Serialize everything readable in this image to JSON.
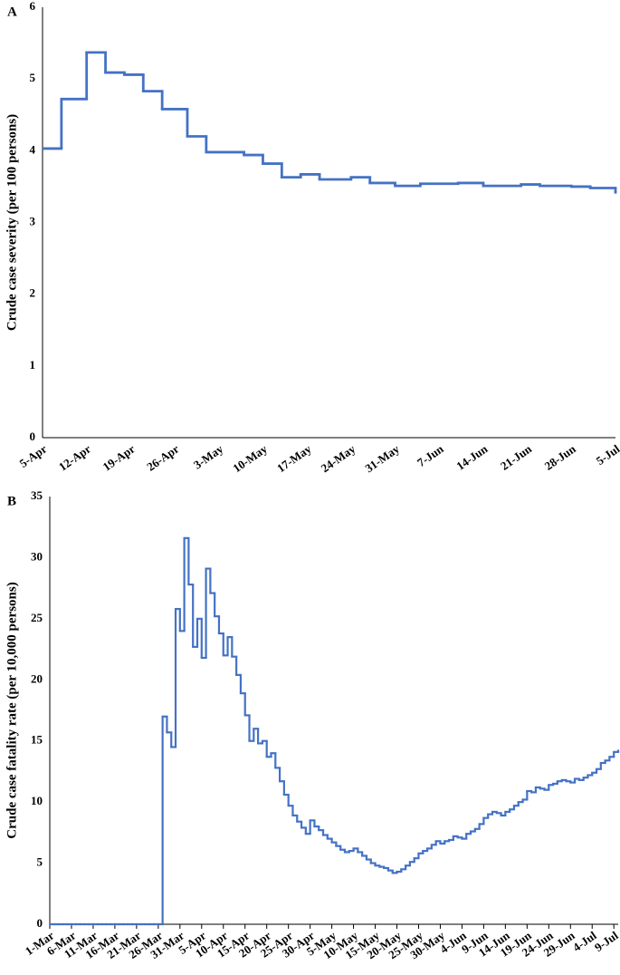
{
  "chart_data": [
    {
      "type": "step",
      "label": "A",
      "ylabel": "Crude case severity (per 100 persons)",
      "series": [
        {
          "color": "#4472c4",
          "x": [
            0,
            3,
            7,
            10,
            13,
            16,
            19,
            23,
            26,
            32,
            35,
            38,
            41,
            44,
            49,
            52,
            56,
            60,
            66,
            70,
            76,
            79,
            84,
            87,
            91
          ],
          "values": [
            4.03,
            4.72,
            5.37,
            5.09,
            5.06,
            4.83,
            4.58,
            4.2,
            3.98,
            3.94,
            3.82,
            3.63,
            3.67,
            3.6,
            3.63,
            3.55,
            3.51,
            3.54,
            3.55,
            3.51,
            3.53,
            3.51,
            3.5,
            3.48,
            3.42
          ]
        }
      ],
      "xlim": [
        0,
        91
      ],
      "xticks": [
        {
          "value": 0,
          "label": "5-Apr"
        },
        {
          "value": 7,
          "label": "12-Apr"
        },
        {
          "value": 14,
          "label": "19-Apr"
        },
        {
          "value": 21,
          "label": "26-Apr"
        },
        {
          "value": 28,
          "label": "3-May"
        },
        {
          "value": 35,
          "label": "10-May"
        },
        {
          "value": 42,
          "label": "17-May"
        },
        {
          "value": 49,
          "label": "24-May"
        },
        {
          "value": 56,
          "label": "31-May"
        },
        {
          "value": 63,
          "label": "7-Jun"
        },
        {
          "value": 70,
          "label": "14-Jun"
        },
        {
          "value": 77,
          "label": "21-Jun"
        },
        {
          "value": 84,
          "label": "28-Jun"
        },
        {
          "value": 91,
          "label": "5-Jul"
        }
      ],
      "ylim": [
        0,
        6
      ],
      "yticks": [
        0,
        1,
        2,
        3,
        4,
        5,
        6
      ],
      "grid": false
    },
    {
      "type": "step",
      "label": "B",
      "ylabel": "Crude case fatality rate (per 10,000 persons)",
      "series": [
        {
          "color": "#4472c4",
          "x": [
            0,
            1,
            2,
            3,
            4,
            5,
            6,
            7,
            8,
            9,
            10,
            11,
            12,
            13,
            14,
            15,
            16,
            17,
            18,
            19,
            20,
            21,
            22,
            23,
            24,
            25,
            26,
            27,
            28,
            29,
            30,
            31,
            32,
            33,
            34,
            35,
            36,
            37,
            38,
            39,
            40,
            41,
            42,
            43,
            44,
            45,
            46,
            47,
            48,
            49,
            50,
            51,
            52,
            53,
            54,
            55,
            56,
            57,
            58,
            59,
            60,
            61,
            62,
            63,
            64,
            65,
            66,
            67,
            68,
            69,
            70,
            71,
            72,
            73,
            74,
            75,
            76,
            77,
            78,
            79,
            80,
            81,
            82,
            83,
            84,
            85,
            86,
            87,
            88,
            89,
            90,
            91,
            92,
            93,
            94,
            95,
            96,
            97,
            98,
            99,
            100,
            101,
            102,
            103,
            104,
            105,
            106,
            107,
            108,
            109,
            110,
            111,
            112,
            113,
            114,
            115,
            116,
            117,
            118,
            119,
            120,
            121,
            122,
            123,
            124,
            125,
            126,
            127,
            128,
            129,
            130,
            131
          ],
          "values": [
            0,
            0,
            0,
            0,
            0,
            0,
            0,
            0,
            0,
            0,
            0,
            0,
            0,
            0,
            0,
            0,
            0,
            0,
            0,
            0,
            0,
            0,
            0,
            0,
            0,
            0,
            17.0,
            15.7,
            14.5,
            25.8,
            24.0,
            31.6,
            27.8,
            22.7,
            25.0,
            21.8,
            29.1,
            27.1,
            25.2,
            23.8,
            22.0,
            23.5,
            21.9,
            20.4,
            18.9,
            17.1,
            15.0,
            16.0,
            14.8,
            15.0,
            13.7,
            14.0,
            12.8,
            11.7,
            10.6,
            9.7,
            8.9,
            8.4,
            7.9,
            7.4,
            8.5,
            8.0,
            7.7,
            7.3,
            7.0,
            6.7,
            6.4,
            6.1,
            5.9,
            6.0,
            6.2,
            5.9,
            5.6,
            5.3,
            5.0,
            4.8,
            4.7,
            4.6,
            4.4,
            4.2,
            4.3,
            4.5,
            4.8,
            5.1,
            5.4,
            5.8,
            6.0,
            6.2,
            6.5,
            6.8,
            6.6,
            6.8,
            6.9,
            7.2,
            7.1,
            7.0,
            7.4,
            7.6,
            7.8,
            8.2,
            8.7,
            9.0,
            9.2,
            9.1,
            8.9,
            9.2,
            9.4,
            9.7,
            10.0,
            10.2,
            10.9,
            10.8,
            11.2,
            11.1,
            11.0,
            11.4,
            11.5,
            11.7,
            11.8,
            11.7,
            11.6,
            11.9,
            11.8,
            12.0,
            12.2,
            12.4,
            12.7,
            13.2,
            13.4,
            13.7,
            14.1,
            14.2
          ]
        }
      ],
      "xlim": [
        0,
        131
      ],
      "xticks": [
        {
          "value": 0,
          "label": "1-Mar"
        },
        {
          "value": 5,
          "label": "6-Mar"
        },
        {
          "value": 10,
          "label": "11-Mar"
        },
        {
          "value": 15,
          "label": "16-Mar"
        },
        {
          "value": 20,
          "label": "21-Mar"
        },
        {
          "value": 25,
          "label": "26-Mar"
        },
        {
          "value": 30,
          "label": "31-Mar"
        },
        {
          "value": 35,
          "label": "5-Apr"
        },
        {
          "value": 40,
          "label": "10-Apr"
        },
        {
          "value": 45,
          "label": "15-Apr"
        },
        {
          "value": 50,
          "label": "20-Apr"
        },
        {
          "value": 55,
          "label": "25-Apr"
        },
        {
          "value": 60,
          "label": "30-Apr"
        },
        {
          "value": 65,
          "label": "5-May"
        },
        {
          "value": 70,
          "label": "10-May"
        },
        {
          "value": 75,
          "label": "15-May"
        },
        {
          "value": 80,
          "label": "20-May"
        },
        {
          "value": 85,
          "label": "25-May"
        },
        {
          "value": 90,
          "label": "30-May"
        },
        {
          "value": 95,
          "label": "4-Jun"
        },
        {
          "value": 100,
          "label": "9-Jun"
        },
        {
          "value": 105,
          "label": "14-Jun"
        },
        {
          "value": 110,
          "label": "19-Jun"
        },
        {
          "value": 115,
          "label": "24-Jun"
        },
        {
          "value": 120,
          "label": "29-Jun"
        },
        {
          "value": 125,
          "label": "4-Jul"
        },
        {
          "value": 130,
          "label": "9-Jul"
        }
      ],
      "ylim": [
        0,
        35
      ],
      "yticks": [
        0,
        5,
        10,
        15,
        20,
        25,
        30,
        35
      ],
      "grid": false
    }
  ]
}
